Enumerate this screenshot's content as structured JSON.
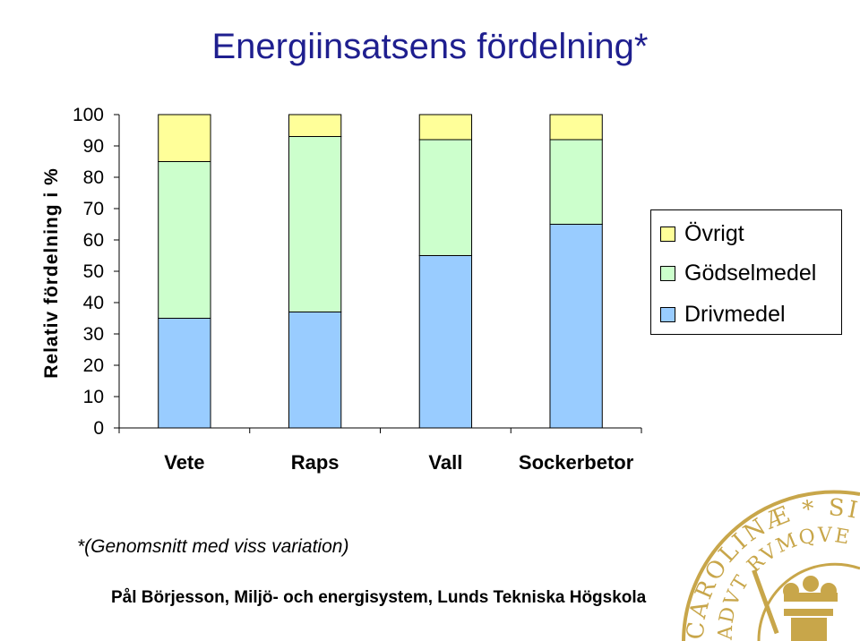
{
  "title": "Energiinsatsens fördelning*",
  "footnote": "*(Genomsnitt med viss variation)",
  "credit": "Pål Börjesson, Miljö- och energisystem, Lunds Tekniska Högskola",
  "seal_text": "CAROLINÆ SIGILL RVMQVE ADVT RVM",
  "colors": {
    "drivmedel": "#99ccff",
    "godselmedel": "#ccffcc",
    "ovrigt": "#ffff99",
    "title": "#1f1f8f",
    "seal": "#c8a64a"
  },
  "chart_data": {
    "type": "bar",
    "stacked": true,
    "title": "",
    "xlabel": "",
    "ylabel": "Relativ fördelning i %",
    "ylim": [
      0,
      100
    ],
    "yticks": [
      0,
      10,
      20,
      30,
      40,
      50,
      60,
      70,
      80,
      90,
      100
    ],
    "categories": [
      "Vete",
      "Raps",
      "Vall",
      "Sockerbetor"
    ],
    "series": [
      {
        "name": "Drivmedel",
        "color": "#99ccff",
        "values": [
          35,
          37,
          55,
          65
        ]
      },
      {
        "name": "Gödselmedel",
        "color": "#ccffcc",
        "values": [
          50,
          56,
          37,
          27
        ]
      },
      {
        "name": "Övrigt",
        "color": "#ffff99",
        "values": [
          15,
          7,
          8,
          8
        ]
      }
    ],
    "legend": [
      "Övrigt",
      "Gödselmedel",
      "Drivmedel"
    ],
    "legend_position": "right",
    "grid": false
  }
}
